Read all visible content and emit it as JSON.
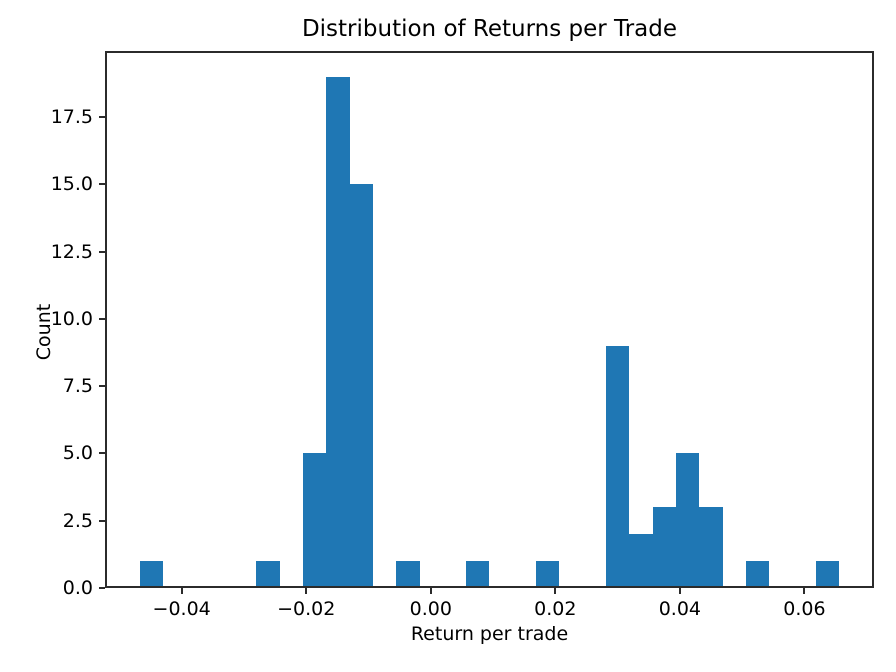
{
  "title": "Distribution of Returns per Trade",
  "axes": {
    "xlabel": "Return per trade",
    "ylabel": "Count",
    "x_ticks": [
      {
        "value": -0.04,
        "label": "−0.04"
      },
      {
        "value": -0.02,
        "label": "−0.02"
      },
      {
        "value": 0.0,
        "label": "0.00"
      },
      {
        "value": 0.02,
        "label": "0.02"
      },
      {
        "value": 0.04,
        "label": "0.04"
      },
      {
        "value": 0.06,
        "label": "0.06"
      }
    ],
    "y_ticks": [
      {
        "value": 0.0,
        "label": "0.0"
      },
      {
        "value": 2.5,
        "label": "2.5"
      },
      {
        "value": 5.0,
        "label": "5.0"
      },
      {
        "value": 7.5,
        "label": "7.5"
      },
      {
        "value": 10.0,
        "label": "10.0"
      },
      {
        "value": 12.5,
        "label": "12.5"
      },
      {
        "value": 15.0,
        "label": "15.0"
      },
      {
        "value": 17.5,
        "label": "17.5"
      }
    ]
  },
  "colors": {
    "bar": "#1f77b4",
    "axis": "#2b2b2b",
    "background": "#ffffff",
    "text": "#000000"
  },
  "chart_data": {
    "type": "bar",
    "subtype": "histogram",
    "title": "Distribution of Returns per Trade",
    "xlabel": "Return per trade",
    "ylabel": "Count",
    "n_bins": 30,
    "bin_edges": [
      -0.0467,
      -0.04296,
      -0.03922,
      -0.03548,
      -0.03173,
      -0.02799,
      -0.02425,
      -0.02051,
      -0.01677,
      -0.01302,
      -0.00928,
      -0.00554,
      -0.0018,
      0.00194,
      0.00569,
      0.00943,
      0.01317,
      0.01691,
      0.02065,
      0.0244,
      0.02814,
      0.03188,
      0.03562,
      0.03936,
      0.04311,
      0.04685,
      0.05059,
      0.05433,
      0.05807,
      0.06181,
      0.06556
    ],
    "counts": [
      1,
      0,
      0,
      0,
      0,
      1,
      0,
      5,
      19,
      15,
      0,
      1,
      0,
      0,
      1,
      0,
      0,
      1,
      0,
      0,
      9,
      2,
      3,
      5,
      3,
      0,
      1,
      0,
      0,
      1
    ],
    "xlim": [
      -0.05231,
      0.07117
    ],
    "ylim": [
      0,
      19.95
    ],
    "grid": false,
    "legend": false
  }
}
